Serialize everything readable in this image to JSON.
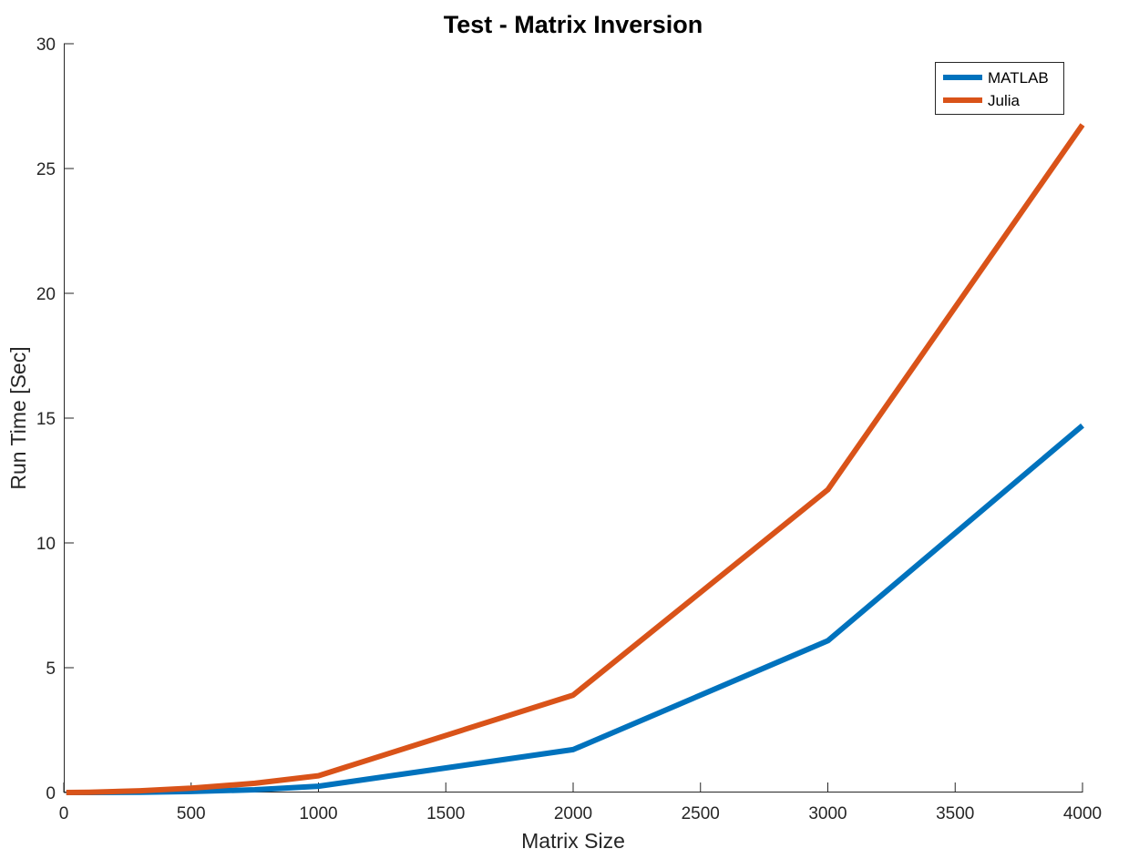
{
  "chart_data": {
    "type": "line",
    "title": "Test - Matrix Inversion",
    "xlabel": "Matrix Size",
    "ylabel": "Run Time  [Sec]",
    "xlim": [
      0,
      4000
    ],
    "ylim": [
      0,
      30
    ],
    "xticks": [
      "0",
      "500",
      "1000",
      "1500",
      "2000",
      "2500",
      "3000",
      "3500",
      "4000"
    ],
    "yticks": [
      "0",
      "5",
      "10",
      "15",
      "20",
      "25",
      "30"
    ],
    "grid": false,
    "legend_position": "top-right",
    "series": [
      {
        "name": "MATLAB",
        "color": "#0072BD",
        "x": [
          10,
          100,
          300,
          500,
          750,
          1000,
          2000,
          3000,
          4000
        ],
        "y": [
          0.0,
          0.0,
          0.01,
          0.04,
          0.11,
          0.25,
          1.72,
          6.08,
          14.7
        ]
      },
      {
        "name": "Julia",
        "color": "#D95319",
        "x": [
          10,
          100,
          300,
          500,
          750,
          1000,
          2000,
          3000,
          4000
        ],
        "y": [
          0.0,
          0.01,
          0.07,
          0.17,
          0.37,
          0.67,
          3.9,
          12.13,
          26.75
        ]
      }
    ]
  }
}
